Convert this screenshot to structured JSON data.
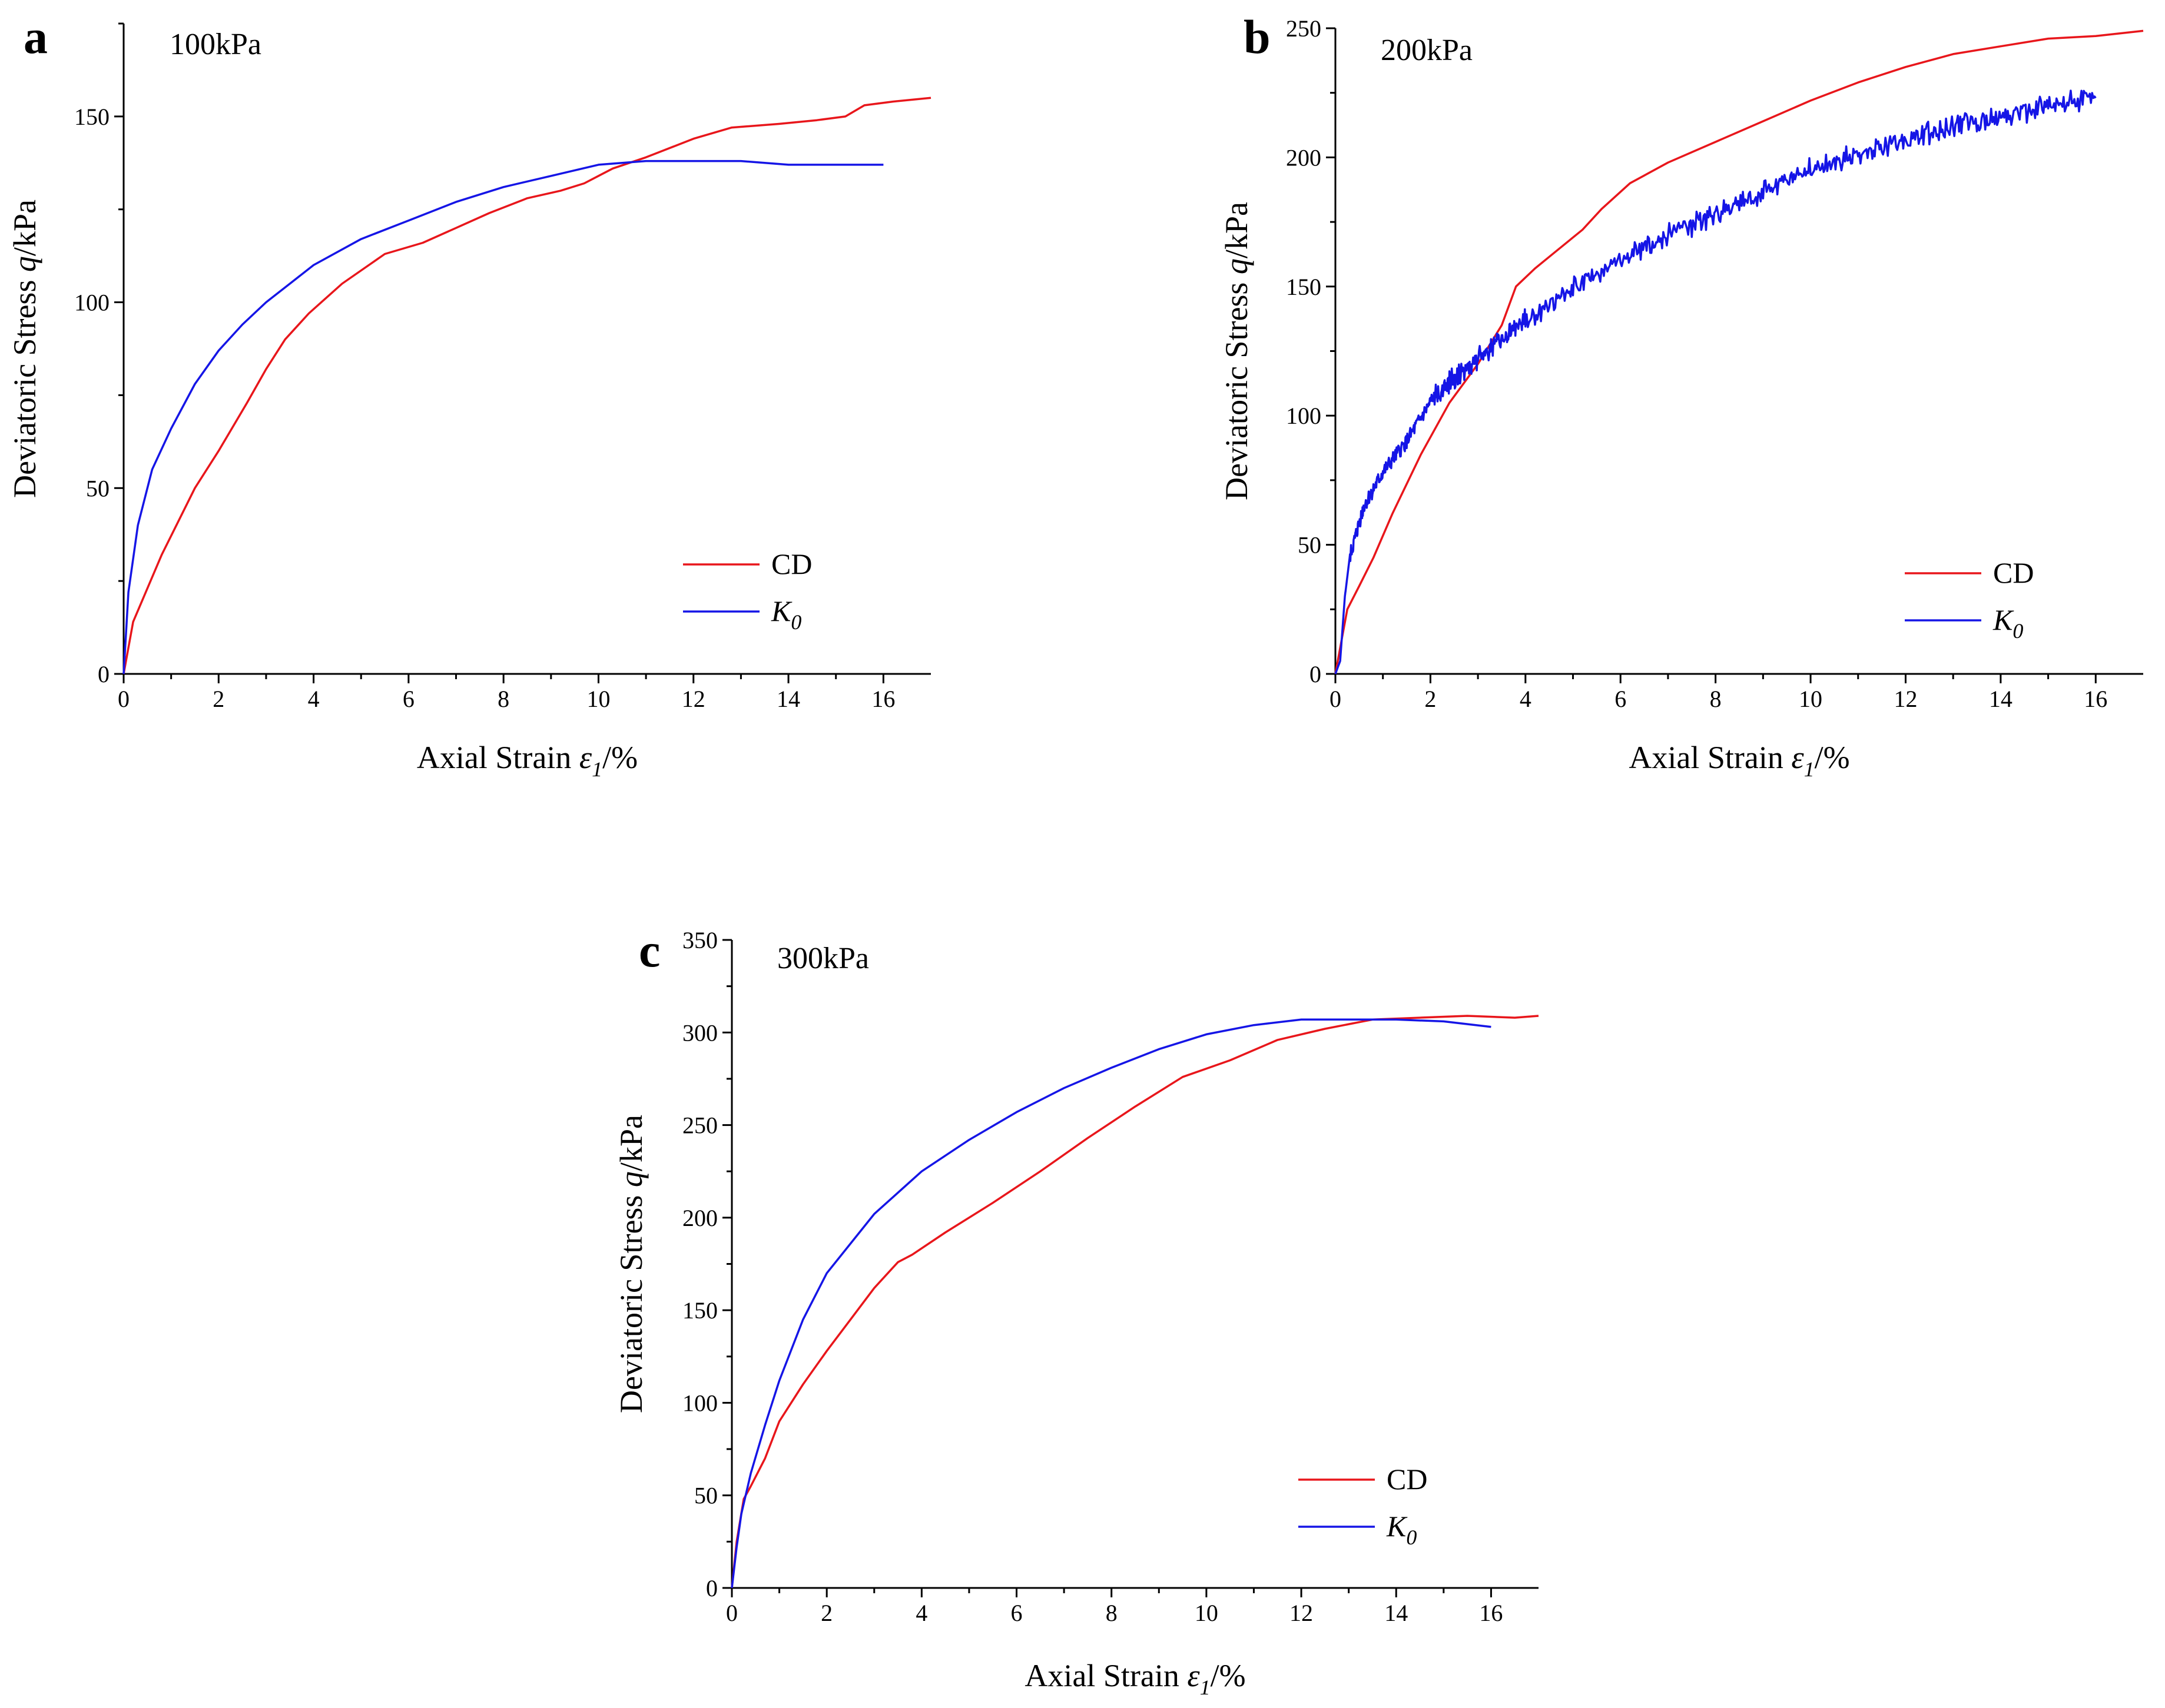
{
  "figure": {
    "colors": {
      "CD": "#e8161b",
      "K0": "#1515e6",
      "axis": "#000000"
    }
  },
  "chart_data": [
    {
      "type": "line",
      "panel_label": "a",
      "title": "100kPa",
      "xlabel": {
        "main": "Axial Strain",
        "symbol": "ε",
        "sub": "1",
        "unit": "/%"
      },
      "ylabel": {
        "main": "Deviatoric Stress",
        "symbol": "q",
        "unit": "/kPa"
      },
      "xlim": [
        0,
        17
      ],
      "ylim": [
        0,
        175
      ],
      "xticks": [
        0,
        2,
        4,
        6,
        8,
        10,
        12,
        14,
        16
      ],
      "xtick_labels": [
        "0",
        "2",
        "4",
        "6",
        "8",
        "10",
        "12",
        "14",
        "16"
      ],
      "yticks": [
        0,
        50,
        100,
        150
      ],
      "ytick_labels": [
        "0",
        "50",
        "100",
        "150"
      ],
      "legend": [
        {
          "series": "CD",
          "label": "CD",
          "italic": false
        },
        {
          "series": "K0",
          "label": "K",
          "sub": "0",
          "italic": true
        }
      ],
      "series": [
        {
          "name": "CD",
          "color": "#e8161b",
          "x": [
            0,
            0.2,
            0.8,
            1.5,
            2.0,
            2.6,
            3.0,
            3.4,
            3.9,
            4.6,
            5.5,
            6.3,
            7.0,
            7.7,
            8.5,
            9.2,
            9.7,
            10.3,
            11.0,
            12.0,
            12.8,
            13.8,
            14.6,
            15.2,
            15.6,
            16.2,
            17.0
          ],
          "y": [
            0,
            14,
            32,
            50,
            60,
            73,
            82,
            90,
            97,
            105,
            113,
            116,
            120,
            124,
            128,
            130,
            132,
            136,
            139,
            144,
            147,
            148,
            149,
            150,
            153,
            154,
            155
          ]
        },
        {
          "name": "K0",
          "color": "#1515e6",
          "x": [
            0,
            0.1,
            0.3,
            0.6,
            1.0,
            1.5,
            2.0,
            2.5,
            3.0,
            3.5,
            4.0,
            5.0,
            6.0,
            7.0,
            8.0,
            9.0,
            10.0,
            11.0,
            12.0,
            13.0,
            14.0,
            15.0,
            16.0
          ],
          "y": [
            0,
            22,
            40,
            55,
            66,
            78,
            87,
            94,
            100,
            105,
            110,
            117,
            122,
            127,
            131,
            134,
            137,
            138,
            138,
            138,
            137,
            137,
            137
          ]
        }
      ]
    },
    {
      "type": "line",
      "panel_label": "b",
      "title": "200kPa",
      "xlabel": {
        "main": "Axial Strain",
        "symbol": "ε",
        "sub": "1",
        "unit": "/%"
      },
      "ylabel": {
        "main": "Deviatoric Stress",
        "symbol": "q",
        "unit": "/kPa"
      },
      "xlim": [
        0,
        17
      ],
      "ylim": [
        0,
        250
      ],
      "xticks": [
        0,
        2,
        4,
        6,
        8,
        10,
        12,
        14,
        16
      ],
      "xtick_labels": [
        "0",
        "2",
        "4",
        "6",
        "8",
        "10",
        "12",
        "14",
        "16"
      ],
      "yticks": [
        0,
        50,
        100,
        150,
        200,
        250
      ],
      "ytick_labels": [
        "0",
        "50",
        "100",
        "150",
        "200",
        "250"
      ],
      "legend": [
        {
          "series": "CD",
          "label": "CD",
          "italic": false
        },
        {
          "series": "K0",
          "label": "K",
          "sub": "0",
          "italic": true
        }
      ],
      "series": [
        {
          "name": "CD",
          "color": "#e8161b",
          "x": [
            0,
            0.05,
            0.15,
            0.25,
            0.5,
            0.8,
            1.2,
            1.8,
            2.4,
            3.0,
            3.5,
            3.8,
            4.2,
            4.6,
            5.2,
            5.6,
            6.2,
            7.0,
            8.0,
            9.0,
            10.0,
            11.0,
            12.0,
            13.0,
            14.0,
            15.0,
            16.0,
            17.0
          ],
          "y": [
            0,
            5,
            15,
            25,
            34,
            45,
            62,
            85,
            105,
            120,
            135,
            150,
            157,
            163,
            172,
            180,
            190,
            198,
            206,
            214,
            222,
            229,
            235,
            240,
            243,
            246,
            247,
            249
          ]
        },
        {
          "name": "K0",
          "color": "#1515e6",
          "noisy": true,
          "x": [
            0,
            0.1,
            0.2,
            0.3,
            0.6,
            1.0,
            1.5,
            2.0,
            2.5,
            3.0,
            3.5,
            4.0,
            5.0,
            6.0,
            7.0,
            8.0,
            9.0,
            10.0,
            11.0,
            12.0,
            13.0,
            14.0,
            15.0,
            16.0
          ],
          "y": [
            0,
            5,
            30,
            45,
            65,
            78,
            90,
            105,
            115,
            122,
            130,
            137,
            149,
            160,
            170,
            178,
            187,
            195,
            201,
            207,
            212,
            216,
            220,
            223
          ]
        }
      ]
    },
    {
      "type": "line",
      "panel_label": "c",
      "title": "300kPa",
      "xlabel": {
        "main": "Axial Strain",
        "symbol": "ε",
        "sub": "1",
        "unit": "/%"
      },
      "ylabel": {
        "main": "Deviatoric Stress",
        "symbol": "q",
        "unit": "/kPa"
      },
      "xlim": [
        0,
        17
      ],
      "ylim": [
        0,
        350
      ],
      "xticks": [
        0,
        2,
        4,
        6,
        8,
        10,
        12,
        14,
        16
      ],
      "xtick_labels": [
        "0",
        "2",
        "4",
        "6",
        "8",
        "10",
        "12",
        "14",
        "16"
      ],
      "yticks": [
        0,
        50,
        100,
        150,
        200,
        250,
        300,
        350
      ],
      "ytick_labels": [
        "0",
        "50",
        "100",
        "150",
        "200",
        "250",
        "300",
        "350"
      ],
      "legend": [
        {
          "series": "CD",
          "label": "CD",
          "italic": false
        },
        {
          "series": "K0",
          "label": "K",
          "sub": "0",
          "italic": true
        }
      ],
      "series": [
        {
          "name": "CD",
          "color": "#e8161b",
          "x": [
            0,
            0.1,
            0.25,
            0.4,
            0.7,
            1.0,
            1.5,
            2.0,
            2.5,
            3.0,
            3.5,
            3.8,
            4.5,
            5.5,
            6.5,
            7.5,
            8.5,
            9.5,
            10.5,
            11.5,
            12.5,
            13.5,
            14.5,
            15.5,
            16.5,
            17.0
          ],
          "y": [
            0,
            25,
            48,
            55,
            70,
            90,
            110,
            128,
            145,
            162,
            176,
            180,
            192,
            208,
            225,
            243,
            260,
            276,
            285,
            296,
            302,
            307,
            308,
            309,
            308,
            309
          ]
        },
        {
          "name": "K0",
          "color": "#1515e6",
          "x": [
            0,
            0.1,
            0.2,
            0.4,
            0.7,
            1.0,
            1.5,
            2.0,
            3.0,
            4.0,
            5.0,
            6.0,
            7.0,
            8.0,
            9.0,
            10.0,
            11.0,
            12.0,
            13.0,
            14.0,
            15.0,
            16.0
          ],
          "y": [
            0,
            22,
            40,
            62,
            88,
            112,
            145,
            170,
            202,
            225,
            242,
            257,
            270,
            281,
            291,
            299,
            304,
            307,
            307,
            307,
            306,
            303
          ]
        }
      ]
    }
  ]
}
